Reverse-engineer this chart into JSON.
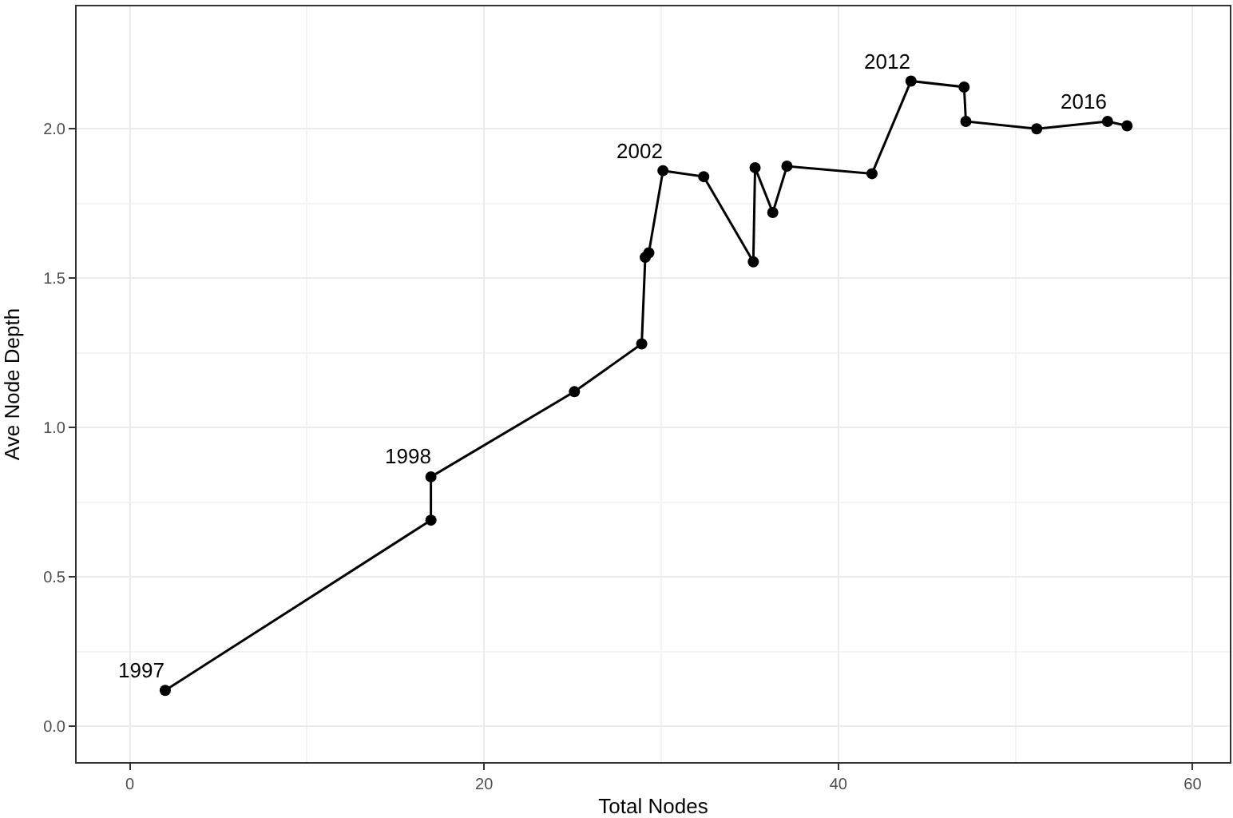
{
  "chart_data": {
    "type": "line",
    "xlabel": "Total Nodes",
    "ylabel": "Ave Node Depth",
    "x": [
      2,
      17,
      17,
      25.1,
      28.9,
      29.1,
      29.3,
      30.1,
      32.4,
      35.2,
      35.3,
      36.3,
      37.1,
      41.9,
      44.1,
      47.1,
      47.2,
      51.2,
      55.2,
      56.3
    ],
    "series": [
      {
        "color": "#000000",
        "values": [
          0.12,
          0.69,
          0.835,
          1.12,
          1.28,
          1.57,
          1.585,
          1.86,
          1.84,
          1.555,
          1.87,
          1.72,
          1.875,
          1.85,
          2.16,
          2.14,
          2.025,
          2.0,
          2.025,
          2.01
        ]
      }
    ],
    "annotations": [
      {
        "text": "1997",
        "x": 2,
        "y": 0.12
      },
      {
        "text": "1998",
        "x": 17,
        "y": 0.835
      },
      {
        "text": "2002",
        "x": 30.1,
        "y": 1.86
      },
      {
        "text": "2012",
        "x": 44.1,
        "y": 2.16
      },
      {
        "text": "2016",
        "x": 55.2,
        "y": 2.025
      }
    ],
    "xlim": [
      -3,
      62.1
    ],
    "xticks": [
      0,
      20,
      40,
      60
    ],
    "ylim": [
      -0.12,
      2.41
    ],
    "yticks": [
      {
        "value": 0,
        "label": "0.0"
      },
      0.5,
      {
        "value": 1,
        "label": "1.0"
      },
      1.5,
      {
        "value": 2,
        "label": "2.0"
      }
    ],
    "grid": true,
    "marker": "circle",
    "line_style": "solid"
  }
}
